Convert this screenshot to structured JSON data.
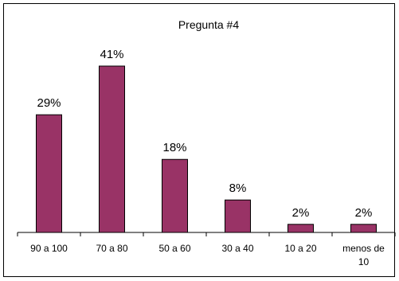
{
  "chart_data": {
    "type": "bar",
    "title": "Pregunta #4",
    "categories": [
      [
        "90 a 100"
      ],
      [
        "70 a 80"
      ],
      [
        "50 a 60"
      ],
      [
        "30 a 40"
      ],
      [
        "10 a 20"
      ],
      [
        "menos de",
        "10"
      ]
    ],
    "values": [
      29,
      41,
      18,
      8,
      2,
      2
    ],
    "data_labels": [
      "29%",
      "41%",
      "18%",
      "8%",
      "2%",
      "2%"
    ],
    "value_unit": "%",
    "ylim": [
      0,
      41
    ],
    "grid": false,
    "legend": "none",
    "bar_color": "#993366",
    "bar_stroke": "#000000"
  }
}
